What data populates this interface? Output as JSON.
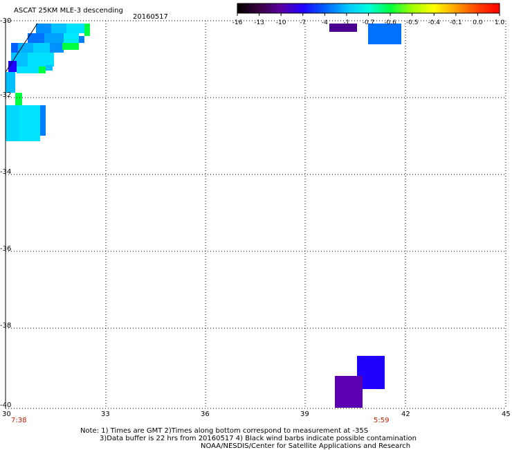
{
  "header": {
    "title": "ASCAT 25KM MLE-3 descending",
    "date": "20160517"
  },
  "colorbar": {
    "labels": [
      "-16",
      "-13",
      "-10",
      "-7",
      "-4",
      "-1",
      "-0.7",
      "-0.6",
      "-0.5",
      "-0.4",
      "-0.1",
      "0.0",
      "1.0"
    ],
    "colors": [
      "#000000",
      "#3a0040",
      "#5a00a0",
      "#2000ff",
      "#0060ff",
      "#00c0ff",
      "#00ffe0",
      "#00ff40",
      "#a0ff00",
      "#ffff00",
      "#ffa000",
      "#ff4000",
      "#ff0000"
    ]
  },
  "map": {
    "lon_range": [
      30,
      45
    ],
    "lat_range": [
      -40,
      -30
    ],
    "x_ticks": [
      "30",
      "33",
      "36",
      "39",
      "42",
      "45"
    ],
    "y_ticks": [
      "-30",
      "-32",
      "-34",
      "-36",
      "-38",
      "-40"
    ],
    "times": {
      "left": "7:38",
      "right": "5:59"
    },
    "grid": "dotted"
  },
  "notes": {
    "line1": "Note: 1) Times are GMT 2)Times along bottom correspond to measurement at -35S",
    "line2": "3)Data buffer is 22 hrs from 20160517 4) Black wind barbs indicate possible contamination",
    "line3": "NOAA/NESDIS/Center for Satellite Applications and Research"
  }
}
